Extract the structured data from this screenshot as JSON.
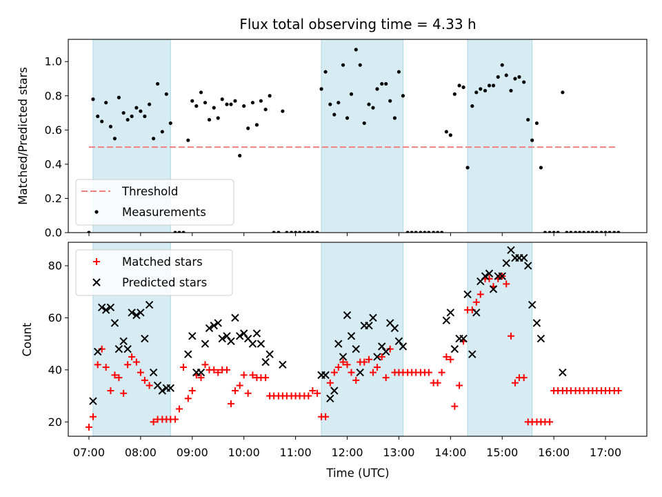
{
  "chart_data": [
    {
      "type": "scatter",
      "title": "Flux total observing time = 4.33 h",
      "xlabel": "",
      "ylabel": "Matched/Predicted stars",
      "x_unit": "hours UTC",
      "xlim": [
        6.6,
        17.8
      ],
      "ylim": [
        0,
        1.13
      ],
      "yticks": [
        0.0,
        0.2,
        0.4,
        0.6,
        0.8,
        1.0
      ],
      "ytick_labels": [
        "0.0",
        "0.2",
        "0.4",
        "0.6",
        "0.8",
        "1.0"
      ],
      "shaded_intervals": [
        [
          7.08,
          8.58
        ],
        [
          11.5,
          13.08
        ],
        [
          14.33,
          15.58
        ]
      ],
      "shade_color": "#add8e6",
      "threshold": {
        "name": "Threshold",
        "value": 0.5,
        "x_range": [
          7.0,
          17.2
        ],
        "color": "#f08080"
      },
      "legend": [
        "Threshold",
        "Measurements"
      ],
      "legend_loc": "lower-left",
      "series": [
        {
          "name": "Measurements",
          "color": "#000000",
          "x": [
            7.0,
            7.08,
            7.17,
            7.25,
            7.33,
            7.42,
            7.5,
            7.58,
            7.67,
            7.75,
            7.83,
            7.92,
            8.0,
            8.08,
            8.17,
            8.25,
            8.33,
            8.42,
            8.5,
            8.58,
            8.67,
            8.75,
            8.83,
            8.92,
            9.0,
            9.08,
            9.17,
            9.25,
            9.33,
            9.42,
            9.5,
            9.58,
            9.67,
            9.75,
            9.83,
            9.92,
            10.0,
            10.08,
            10.17,
            10.25,
            10.33,
            10.42,
            10.5,
            10.58,
            10.67,
            10.75,
            10.83,
            10.92,
            11.0,
            11.08,
            11.17,
            11.25,
            11.33,
            11.42,
            11.5,
            11.58,
            11.67,
            11.75,
            11.83,
            11.92,
            12.0,
            12.08,
            12.17,
            12.25,
            12.33,
            12.42,
            12.5,
            12.58,
            12.67,
            12.75,
            12.83,
            12.92,
            13.0,
            13.08,
            13.17,
            13.25,
            13.33,
            13.42,
            13.5,
            13.58,
            13.67,
            13.75,
            13.83,
            13.92,
            14.0,
            14.08,
            14.17,
            14.25,
            14.33,
            14.42,
            14.5,
            14.58,
            14.67,
            14.75,
            14.83,
            14.92,
            15.0,
            15.08,
            15.17,
            15.25,
            15.33,
            15.42,
            15.5,
            15.58,
            15.67,
            15.75,
            15.83,
            15.92,
            16.0,
            16.08,
            16.17,
            16.25,
            16.33,
            16.42,
            16.5,
            16.58,
            16.67,
            16.75,
            16.83,
            16.92,
            17.0,
            17.08,
            17.17,
            17.25
          ],
          "y": [
            0.0,
            0.78,
            0.68,
            0.65,
            0.76,
            0.62,
            0.55,
            0.79,
            0.7,
            0.66,
            0.68,
            0.73,
            0.71,
            0.68,
            0.75,
            0.55,
            0.87,
            0.59,
            0.81,
            0.64,
            0.0,
            0.0,
            0.0,
            0.54,
            0.77,
            0.74,
            0.82,
            0.76,
            0.66,
            0.73,
            0.67,
            0.78,
            0.75,
            0.75,
            0.77,
            0.45,
            0.74,
            0.61,
            0.76,
            0.63,
            0.77,
            0.72,
            0.8,
            0.0,
            0.0,
            0.71,
            0.0,
            0.0,
            0.0,
            0.0,
            0.0,
            0.0,
            0.0,
            0.0,
            0.84,
            0.94,
            0.75,
            0.69,
            0.76,
            0.98,
            0.67,
            0.81,
            1.07,
            0.98,
            0.64,
            0.75,
            0.73,
            0.84,
            0.87,
            0.87,
            0.77,
            0.67,
            0.94,
            0.8,
            0.0,
            0.0,
            0.0,
            0.0,
            0.0,
            0.0,
            0.0,
            0.0,
            0.0,
            0.59,
            0.57,
            0.81,
            0.86,
            0.85,
            0.38,
            0.74,
            0.82,
            0.84,
            0.83,
            0.86,
            0.86,
            0.91,
            0.98,
            0.92,
            0.83,
            0.9,
            0.91,
            0.88,
            0.66,
            0.54,
            0.64,
            0.38,
            0.0,
            0.0,
            0.0,
            0.0,
            0.82,
            0.0,
            0.0,
            0.0,
            0.0,
            0.0,
            0.0,
            0.0,
            0.0,
            0.0,
            0.0,
            0.0,
            0.0,
            0.0
          ]
        }
      ]
    },
    {
      "type": "scatter",
      "title": "",
      "xlabel": "Time (UTC)",
      "ylabel": "Count",
      "x_unit": "hours UTC",
      "xlim": [
        6.6,
        17.8
      ],
      "ylim": [
        14.5,
        89
      ],
      "xticks": [
        7,
        8,
        9,
        10,
        11,
        12,
        13,
        14,
        15,
        16,
        17
      ],
      "xtick_labels": [
        "07:00",
        "08:00",
        "09:00",
        "10:00",
        "11:00",
        "12:00",
        "13:00",
        "14:00",
        "15:00",
        "16:00",
        "17:00"
      ],
      "yticks": [
        20,
        40,
        60,
        80
      ],
      "ytick_labels": [
        "20",
        "40",
        "60",
        "80"
      ],
      "shaded_intervals": [
        [
          7.08,
          8.58
        ],
        [
          11.5,
          13.08
        ],
        [
          14.33,
          15.58
        ]
      ],
      "shade_color": "#add8e6",
      "legend": [
        "Matched stars",
        "Predicted stars"
      ],
      "legend_loc": "upper-left",
      "series": [
        {
          "name": "Matched stars",
          "marker": "+",
          "color": "#ff0000",
          "x": [
            7.0,
            7.08,
            7.17,
            7.25,
            7.33,
            7.42,
            7.5,
            7.58,
            7.67,
            7.75,
            7.83,
            7.92,
            8.0,
            8.08,
            8.17,
            8.25,
            8.33,
            8.42,
            8.5,
            8.58,
            8.67,
            8.75,
            8.83,
            8.92,
            9.0,
            9.08,
            9.17,
            9.25,
            9.33,
            9.42,
            9.5,
            9.58,
            9.67,
            9.75,
            9.83,
            9.92,
            10.0,
            10.08,
            10.17,
            10.25,
            10.33,
            10.42,
            10.5,
            10.58,
            10.67,
            10.75,
            10.83,
            10.92,
            11.0,
            11.08,
            11.17,
            11.25,
            11.33,
            11.42,
            11.5,
            11.58,
            11.67,
            11.75,
            11.83,
            11.92,
            12.0,
            12.08,
            12.17,
            12.25,
            12.33,
            12.42,
            12.5,
            12.58,
            12.67,
            12.75,
            12.83,
            12.92,
            13.0,
            13.08,
            13.17,
            13.25,
            13.33,
            13.42,
            13.5,
            13.58,
            13.67,
            13.75,
            13.83,
            13.92,
            14.0,
            14.08,
            14.17,
            14.25,
            14.33,
            14.42,
            14.5,
            14.58,
            14.67,
            14.75,
            14.83,
            14.92,
            15.0,
            15.08,
            15.17,
            15.25,
            15.33,
            15.42,
            15.5,
            15.58,
            15.67,
            15.75,
            15.83,
            15.92,
            16.0,
            16.08,
            16.17,
            16.25,
            16.33,
            16.42,
            16.5,
            16.58,
            16.67,
            16.75,
            16.83,
            16.92,
            17.0,
            17.08,
            17.17,
            17.25
          ],
          "y": [
            18,
            22,
            42,
            48,
            41,
            32,
            38,
            37,
            31,
            42,
            45,
            43,
            39,
            36,
            34,
            20,
            21,
            21,
            21,
            21,
            21,
            25,
            41,
            29,
            32,
            38,
            37,
            42,
            40,
            40,
            39,
            40,
            40,
            27,
            32,
            34,
            38,
            31,
            38,
            37,
            37,
            37,
            30,
            30,
            30,
            30,
            30,
            30,
            30,
            30,
            30,
            30,
            32,
            31,
            22,
            22,
            35,
            39,
            41,
            43,
            42,
            39,
            36,
            43,
            43,
            44,
            39,
            41,
            45,
            37,
            48,
            39,
            39,
            39,
            39,
            39,
            39,
            39,
            39,
            39,
            35,
            35,
            39,
            45,
            44,
            26,
            34,
            51,
            63,
            63,
            66,
            69,
            75,
            75,
            72,
            75,
            76,
            73,
            53,
            35,
            37,
            37,
            20,
            20,
            20,
            20,
            20,
            20,
            32,
            32,
            32,
            32,
            32,
            32,
            32,
            32,
            32,
            32,
            32,
            32,
            32,
            32,
            32,
            32
          ]
        },
        {
          "name": "Predicted stars",
          "marker": "x",
          "color": "#000000",
          "x": [
            7.08,
            7.17,
            7.25,
            7.33,
            7.42,
            7.5,
            7.58,
            7.67,
            7.75,
            7.83,
            7.92,
            8.0,
            8.08,
            8.17,
            8.25,
            8.33,
            8.42,
            8.5,
            8.58,
            8.92,
            9.0,
            9.08,
            9.17,
            9.25,
            9.33,
            9.42,
            9.5,
            9.58,
            9.67,
            9.75,
            9.83,
            9.92,
            10.0,
            10.08,
            10.17,
            10.25,
            10.33,
            10.42,
            10.5,
            10.75,
            11.5,
            11.58,
            11.67,
            11.75,
            11.83,
            11.92,
            12.0,
            12.08,
            12.17,
            12.25,
            12.33,
            12.42,
            12.5,
            12.58,
            12.67,
            12.75,
            12.83,
            12.92,
            13.0,
            13.08,
            13.92,
            14.0,
            14.08,
            14.17,
            14.25,
            14.33,
            14.42,
            14.5,
            14.58,
            14.67,
            14.75,
            14.83,
            14.92,
            15.0,
            15.08,
            15.17,
            15.25,
            15.33,
            15.42,
            15.5,
            15.58,
            15.67,
            15.75,
            16.17
          ],
          "y": [
            28,
            47,
            64,
            63,
            64,
            58,
            48,
            51,
            48,
            62,
            61,
            62,
            52,
            65,
            39,
            34,
            32,
            33,
            33,
            46,
            53,
            39,
            39,
            50,
            56,
            57,
            58,
            52,
            53,
            51,
            60,
            53,
            54,
            52,
            50,
            54,
            50,
            43,
            46,
            42,
            38,
            38,
            29,
            32,
            50,
            45,
            61,
            53,
            48,
            39,
            57,
            57,
            60,
            45,
            49,
            47,
            58,
            56,
            51,
            49,
            59,
            62,
            48,
            52,
            52,
            69,
            46,
            62,
            74,
            76,
            77,
            71,
            76,
            76,
            81,
            86,
            83,
            83,
            83,
            80,
            65,
            58,
            52,
            39
          ]
        }
      ]
    }
  ]
}
